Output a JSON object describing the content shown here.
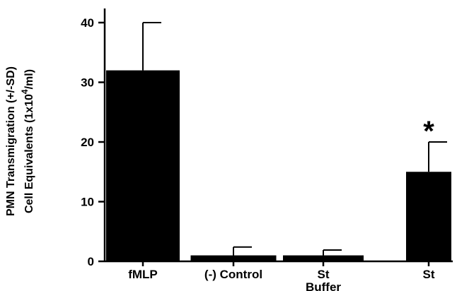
{
  "chart_data": {
    "type": "bar",
    "title": "",
    "xlabel": "",
    "ylabel_lines": [
      "PMN Transmigration (+/-SD)",
      "Cell Equivalents (1x10",
      "4",
      "/ml)"
    ],
    "categories": [
      [
        "fMLP"
      ],
      [
        "(-) Control"
      ],
      [
        "St",
        "Buffer"
      ],
      [
        "St"
      ]
    ],
    "values": [
      32,
      1,
      1,
      15
    ],
    "errors": [
      8,
      1.4,
      0.9,
      5
    ],
    "annotations": [
      "",
      "",
      "",
      "*"
    ],
    "ylim": [
      0,
      40
    ],
    "yticks": [
      0,
      10,
      20,
      30,
      40
    ],
    "bar_color": "#000000",
    "grid": false
  }
}
